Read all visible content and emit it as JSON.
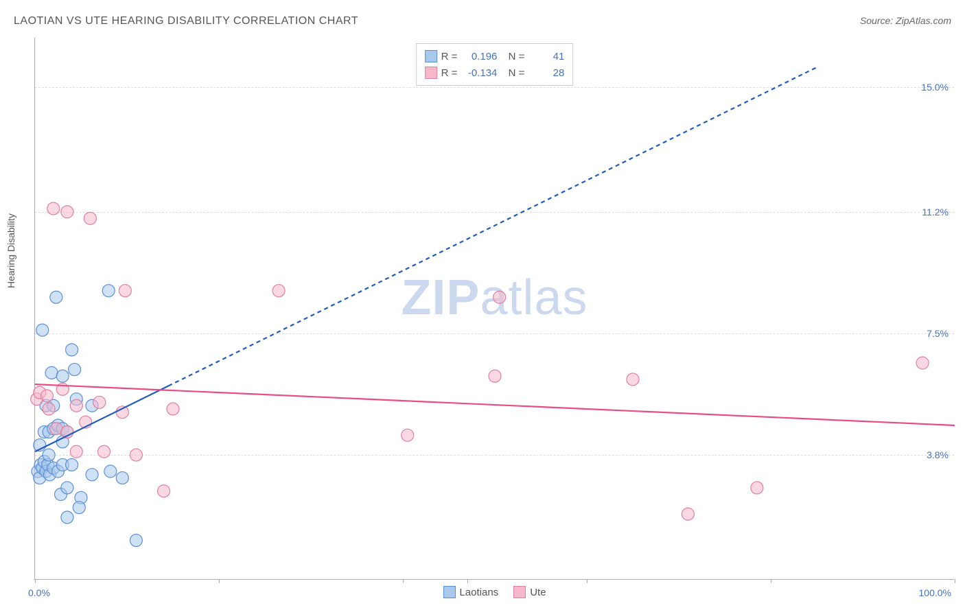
{
  "title": "LAOTIAN VS UTE HEARING DISABILITY CORRELATION CHART",
  "source": "Source: ZipAtlas.com",
  "ylabel": "Hearing Disability",
  "watermark_part1": "ZIP",
  "watermark_part2": "atlas",
  "chart": {
    "type": "scatter",
    "xlim": [
      0,
      100
    ],
    "ylim": [
      0,
      16.5
    ],
    "x_min_label": "0.0%",
    "x_max_label": "100.0%",
    "xtick_positions": [
      0,
      20,
      40,
      47,
      60,
      80,
      100
    ],
    "yticks": [
      {
        "value": 3.8,
        "label": "3.8%"
      },
      {
        "value": 7.5,
        "label": "7.5%"
      },
      {
        "value": 11.2,
        "label": "11.2%"
      },
      {
        "value": 15.0,
        "label": "15.0%"
      }
    ],
    "background_color": "#ffffff",
    "grid_color": "#dddddd",
    "axis_color": "#aaaaaa",
    "tick_label_color": "#4472c4",
    "marker_radius": 9,
    "marker_stroke_width": 1.2,
    "series": [
      {
        "name": "Laotians",
        "label": "Laotians",
        "fill_color": "#a8c8ec",
        "stroke_color": "#5b8fd4",
        "fill_opacity": 0.55,
        "correlation": {
          "R": "0.196",
          "N": "41"
        },
        "regression": {
          "x1": 0,
          "y1": 3.9,
          "x2": 14.5,
          "y2": 5.9,
          "extend_x2": 85,
          "extend_y2": 15.6,
          "stroke": "#1f5bbf",
          "width": 2.2,
          "dash_extend": "6,5"
        },
        "points": [
          [
            0.3,
            3.3
          ],
          [
            0.5,
            3.1
          ],
          [
            0.6,
            3.5
          ],
          [
            0.8,
            3.4
          ],
          [
            1.0,
            3.6
          ],
          [
            1.2,
            3.3
          ],
          [
            1.4,
            3.5
          ],
          [
            1.6,
            3.2
          ],
          [
            1.0,
            4.5
          ],
          [
            1.5,
            4.5
          ],
          [
            2.0,
            4.6
          ],
          [
            2.5,
            4.7
          ],
          [
            3.0,
            4.6
          ],
          [
            3.5,
            4.5
          ],
          [
            2.0,
            3.4
          ],
          [
            2.5,
            3.3
          ],
          [
            3.0,
            3.5
          ],
          [
            4.0,
            3.5
          ],
          [
            1.8,
            6.3
          ],
          [
            3.0,
            6.2
          ],
          [
            4.3,
            6.4
          ],
          [
            1.2,
            5.3
          ],
          [
            2.0,
            5.3
          ],
          [
            4.5,
            5.5
          ],
          [
            6.2,
            5.3
          ],
          [
            2.8,
            2.6
          ],
          [
            3.5,
            2.8
          ],
          [
            5.0,
            2.5
          ],
          [
            3.5,
            1.9
          ],
          [
            4.8,
            2.2
          ],
          [
            6.2,
            3.2
          ],
          [
            8.2,
            3.3
          ],
          [
            9.5,
            3.1
          ],
          [
            0.8,
            7.6
          ],
          [
            2.3,
            8.6
          ],
          [
            4.0,
            7.0
          ],
          [
            8.0,
            8.8
          ],
          [
            11.0,
            1.2
          ],
          [
            3.0,
            4.2
          ],
          [
            1.5,
            3.8
          ],
          [
            0.5,
            4.1
          ]
        ]
      },
      {
        "name": "Ute",
        "label": "Ute",
        "fill_color": "#f5b8cb",
        "stroke_color": "#e07fa0",
        "fill_opacity": 0.55,
        "correlation": {
          "R": "-0.134",
          "N": "28"
        },
        "regression": {
          "x1": 0,
          "y1": 5.95,
          "x2": 100,
          "y2": 4.7,
          "stroke": "#e94b86",
          "width": 2.2
        },
        "points": [
          [
            0.2,
            5.5
          ],
          [
            0.5,
            5.7
          ],
          [
            1.3,
            5.6
          ],
          [
            1.5,
            5.2
          ],
          [
            3.0,
            5.8
          ],
          [
            4.5,
            5.3
          ],
          [
            7.0,
            5.4
          ],
          [
            2.3,
            4.6
          ],
          [
            5.5,
            4.8
          ],
          [
            9.5,
            5.1
          ],
          [
            4.5,
            3.9
          ],
          [
            7.5,
            3.9
          ],
          [
            11.0,
            3.8
          ],
          [
            14.0,
            2.7
          ],
          [
            15.0,
            5.2
          ],
          [
            9.8,
            8.8
          ],
          [
            26.5,
            8.8
          ],
          [
            3.5,
            11.2
          ],
          [
            6.0,
            11.0
          ],
          [
            2.0,
            11.3
          ],
          [
            40.5,
            4.4
          ],
          [
            50.5,
            8.6
          ],
          [
            50.0,
            6.2
          ],
          [
            65.0,
            6.1
          ],
          [
            71.0,
            2.0
          ],
          [
            78.5,
            2.8
          ],
          [
            96.5,
            6.6
          ],
          [
            3.5,
            4.5
          ]
        ]
      }
    ],
    "legend_box": {
      "r_label": "R =",
      "n_label": "N ="
    },
    "bottom_legend_labels": [
      "Laotians",
      "Ute"
    ]
  }
}
